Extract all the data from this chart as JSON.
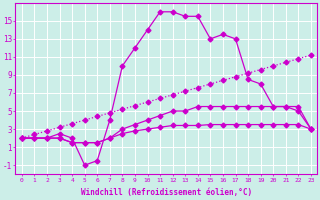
{
  "xlabel": "Windchill (Refroidissement éolien,°C)",
  "background_color": "#cceee8",
  "line_color": "#cc00cc",
  "hours": [
    0,
    1,
    2,
    3,
    4,
    5,
    6,
    7,
    8,
    9,
    10,
    11,
    12,
    13,
    14,
    15,
    16,
    17,
    18,
    19,
    20,
    21,
    22,
    23
  ],
  "line_dip": [
    2,
    2,
    2,
    2.5,
    2,
    -1,
    -0.5,
    4,
    10,
    12,
    14,
    16,
    16,
    15.5,
    15.5,
    13,
    13.5,
    13,
    8.5,
    8,
    5.5,
    5.5,
    5,
    3
  ],
  "line_mid": [
    2,
    2,
    2,
    2,
    1.5,
    1.5,
    1.5,
    2,
    3,
    3.5,
    4,
    4.5,
    5,
    5,
    5.5,
    5.5,
    5.5,
    5.5,
    5.5,
    5.5,
    5.5,
    5.5,
    5.5,
    3
  ],
  "line_low": [
    2,
    2,
    2,
    2,
    1.5,
    1.5,
    1.5,
    2,
    2.5,
    2.8,
    3,
    3.2,
    3.4,
    3.4,
    3.4,
    3.5,
    3.5,
    3.5,
    3.5,
    3.5,
    3.5,
    3.5,
    3.5,
    3
  ],
  "line_diag": [
    2,
    2.4,
    2.8,
    3.2,
    3.6,
    4.0,
    4.4,
    4.8,
    5.2,
    5.6,
    6.0,
    6.4,
    6.8,
    7.2,
    7.6,
    8.0,
    8.4,
    8.8,
    9.2,
    9.6,
    10.0,
    10.4,
    10.8,
    11.2
  ],
  "ylim": [
    -2,
    17
  ],
  "yticks": [
    -1,
    1,
    3,
    5,
    7,
    9,
    11,
    13,
    15
  ],
  "xlim": [
    -0.5,
    23.5
  ]
}
